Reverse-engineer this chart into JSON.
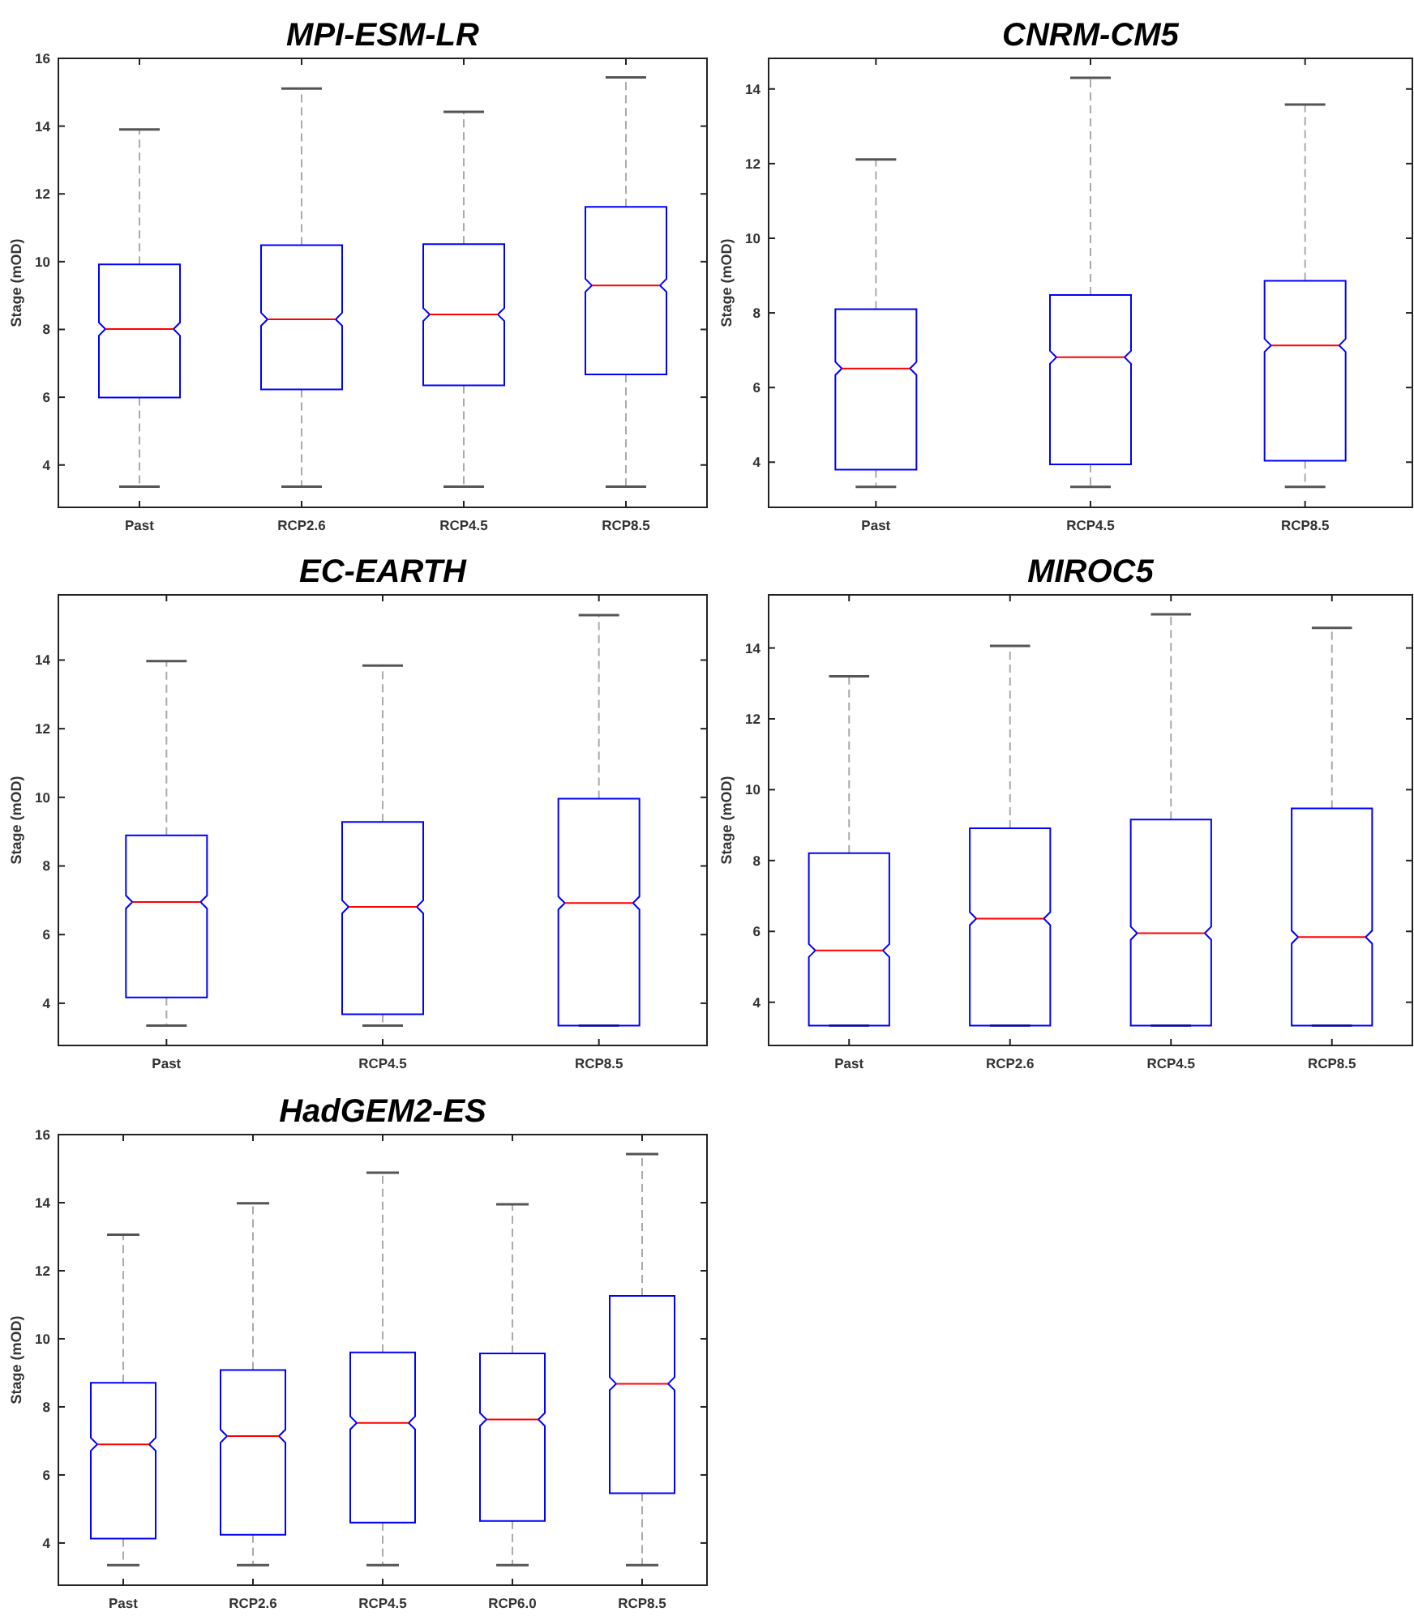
{
  "chart_data": [
    {
      "type": "box",
      "title": "MPI-ESM-LR",
      "ylabel": "Stage (mOD)",
      "categories": [
        "Past",
        "RCP2.6",
        "RCP4.5",
        "RCP8.5"
      ],
      "ylim": [
        2.75,
        16
      ],
      "yticks": [
        4,
        6,
        8,
        10,
        12,
        14,
        16
      ],
      "boxes": [
        {
          "low": 3.36,
          "q1": 5.99,
          "median": 8.01,
          "q3": 9.92,
          "high": 13.9
        },
        {
          "low": 3.36,
          "q1": 6.23,
          "median": 8.3,
          "q3": 10.49,
          "high": 15.11
        },
        {
          "low": 3.36,
          "q1": 6.35,
          "median": 8.44,
          "q3": 10.52,
          "high": 14.42
        },
        {
          "low": 3.36,
          "q1": 6.67,
          "median": 9.3,
          "q3": 11.62,
          "high": 15.44
        }
      ]
    },
    {
      "type": "box",
      "title": "CNRM-CM5",
      "ylabel": "Stage (mOD)",
      "categories": [
        "Past",
        "RCP4.5",
        "RCP8.5"
      ],
      "ylim": [
        2.79,
        14.82
      ],
      "yticks": [
        4,
        6,
        8,
        10,
        12,
        14
      ],
      "boxes": [
        {
          "low": 3.34,
          "q1": 3.8,
          "median": 6.51,
          "q3": 8.1,
          "high": 12.11
        },
        {
          "low": 3.34,
          "q1": 3.94,
          "median": 6.81,
          "q3": 8.48,
          "high": 14.3
        },
        {
          "low": 3.34,
          "q1": 4.04,
          "median": 7.13,
          "q3": 8.86,
          "high": 13.58
        }
      ]
    },
    {
      "type": "box",
      "title": "EC-EARTH",
      "ylabel": "Stage (mOD)",
      "categories": [
        "Past",
        "RCP4.5",
        "RCP8.5"
      ],
      "ylim": [
        2.77,
        15.9
      ],
      "yticks": [
        4,
        6,
        8,
        10,
        12,
        14
      ],
      "boxes": [
        {
          "low": 3.35,
          "q1": 4.17,
          "median": 6.95,
          "q3": 8.89,
          "high": 13.97
        },
        {
          "low": 3.35,
          "q1": 3.68,
          "median": 6.81,
          "q3": 9.28,
          "high": 13.84
        },
        {
          "low": 3.35,
          "q1": 3.35,
          "median": 6.92,
          "q3": 9.96,
          "high": 15.31
        }
      ]
    },
    {
      "type": "box",
      "title": "MIROC5",
      "ylabel": "Stage (mOD)",
      "categories": [
        "Past",
        "RCP2.6",
        "RCP4.5",
        "RCP8.5"
      ],
      "ylim": [
        2.78,
        15.5
      ],
      "yticks": [
        4,
        6,
        8,
        10,
        12,
        14
      ],
      "boxes": [
        {
          "low": 3.34,
          "q1": 3.34,
          "median": 5.46,
          "q3": 8.21,
          "high": 13.2
        },
        {
          "low": 3.34,
          "q1": 3.34,
          "median": 6.36,
          "q3": 8.91,
          "high": 14.06
        },
        {
          "low": 3.34,
          "q1": 3.34,
          "median": 5.95,
          "q3": 9.16,
          "high": 14.95
        },
        {
          "low": 3.34,
          "q1": 3.34,
          "median": 5.84,
          "q3": 9.47,
          "high": 14.57
        }
      ]
    },
    {
      "type": "box",
      "title": "HadGEM2-ES",
      "ylabel": "Stage (mOD)",
      "categories": [
        "Past",
        "RCP2.6",
        "RCP4.5",
        "RCP6.0",
        "RCP8.5"
      ],
      "ylim": [
        2.76,
        16
      ],
      "yticks": [
        4,
        6,
        8,
        10,
        12,
        14,
        16
      ],
      "boxes": [
        {
          "low": 3.35,
          "q1": 4.13,
          "median": 6.9,
          "q3": 8.71,
          "high": 13.06
        },
        {
          "low": 3.35,
          "q1": 4.24,
          "median": 7.14,
          "q3": 9.08,
          "high": 13.98
        },
        {
          "low": 3.35,
          "q1": 4.6,
          "median": 7.53,
          "q3": 9.6,
          "high": 14.88
        },
        {
          "low": 3.35,
          "q1": 4.65,
          "median": 7.63,
          "q3": 9.57,
          "high": 13.95
        },
        {
          "low": 3.35,
          "q1": 5.46,
          "median": 8.68,
          "q3": 11.26,
          "high": 15.43
        }
      ]
    }
  ]
}
